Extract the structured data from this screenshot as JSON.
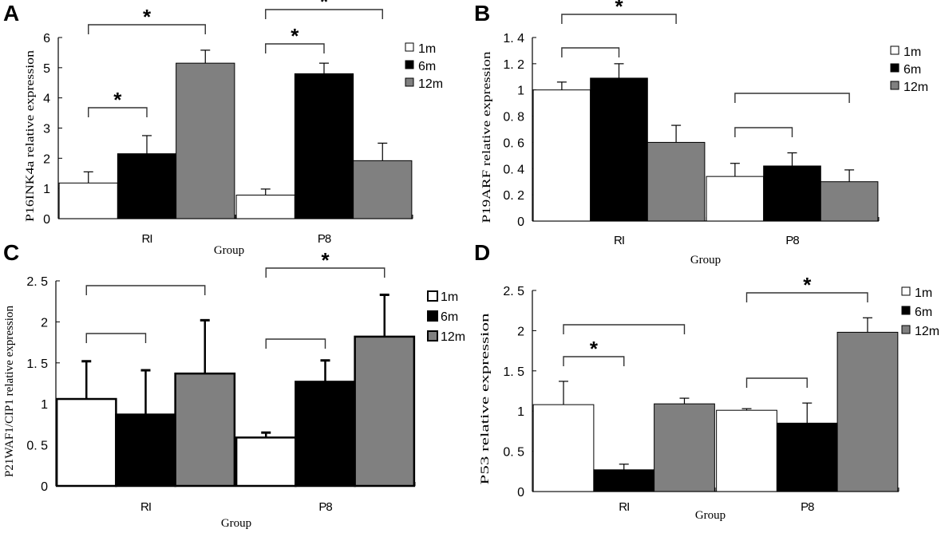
{
  "figure": {
    "legend": [
      {
        "label": "1m",
        "color": "#ffffff"
      },
      {
        "label": "6m",
        "color": "#000000"
      },
      {
        "label": "12m",
        "color": "#808080"
      }
    ]
  },
  "chart_data": [
    {
      "panel": "A",
      "type": "bar",
      "title": "",
      "xlabel": "Group",
      "ylabel": "P16INK4a relative expression",
      "categories": [
        "RI",
        "P8"
      ],
      "ylim": [
        0,
        6
      ],
      "yticks": [
        "0",
        "1",
        "2",
        "3",
        "4",
        "5",
        "6"
      ],
      "ytick_values": [
        0,
        1,
        2,
        3,
        4,
        5,
        6
      ],
      "legend_position": "right",
      "series": [
        {
          "name": "1m",
          "color": "#ffffff",
          "values": [
            1.18,
            0.78
          ],
          "errors": [
            0.37,
            0.2
          ]
        },
        {
          "name": "6m",
          "color": "#000000",
          "values": [
            2.15,
            4.8
          ],
          "errors": [
            0.6,
            0.35
          ]
        },
        {
          "name": "12m",
          "color": "#808080",
          "values": [
            5.15,
            1.92
          ],
          "errors": [
            0.43,
            0.58
          ]
        }
      ],
      "significance": [
        {
          "category": "RI",
          "from": "1m",
          "to": "12m",
          "level": 2,
          "star": "*"
        },
        {
          "category": "RI",
          "from": "1m",
          "to": "6m",
          "level": 1,
          "star": "*"
        },
        {
          "category": "P8",
          "from": "1m",
          "to": "12m",
          "level": 2,
          "star": "*"
        },
        {
          "category": "P8",
          "from": "1m",
          "to": "6m",
          "level": 1,
          "star": "*"
        }
      ]
    },
    {
      "panel": "B",
      "type": "bar",
      "title": "",
      "xlabel": "Group",
      "ylabel": "P19ARF relative expression",
      "categories": [
        "RI",
        "P8"
      ],
      "ylim": [
        0,
        1.4
      ],
      "yticks": [
        "0",
        "0. 2",
        "0. 4",
        "0. 6",
        "0. 8",
        "1",
        "1. 2",
        "1. 4"
      ],
      "ytick_values": [
        0,
        0.2,
        0.4,
        0.6,
        0.8,
        1.0,
        1.2,
        1.4
      ],
      "legend_position": "right",
      "series": [
        {
          "name": "1m",
          "color": "#ffffff",
          "values": [
            1.0,
            0.34
          ],
          "errors": [
            0.06,
            0.1
          ]
        },
        {
          "name": "6m",
          "color": "#000000",
          "values": [
            1.09,
            0.42
          ],
          "errors": [
            0.11,
            0.1
          ]
        },
        {
          "name": "12m",
          "color": "#808080",
          "values": [
            0.6,
            0.3
          ],
          "errors": [
            0.13,
            0.09
          ]
        }
      ],
      "significance": [
        {
          "category": "RI",
          "from": "1m",
          "to": "12m",
          "level": 2,
          "star": "*"
        },
        {
          "category": "RI",
          "from": "1m",
          "to": "6m",
          "level": 1,
          "star": ""
        },
        {
          "category": "P8",
          "from": "1m",
          "to": "12m",
          "level": 2,
          "star": ""
        },
        {
          "category": "P8",
          "from": "1m",
          "to": "6m",
          "level": 1,
          "star": ""
        }
      ]
    },
    {
      "panel": "C",
      "type": "bar",
      "title": "",
      "xlabel": "Group",
      "ylabel": "P21WAF1/CIP1 relative expression",
      "categories": [
        "RI",
        "P8"
      ],
      "ylim": [
        0,
        2.5
      ],
      "yticks": [
        "0",
        "0. 5",
        "1",
        "1. 5",
        "2",
        "2. 5"
      ],
      "ytick_values": [
        0,
        0.5,
        1.0,
        1.5,
        2.0,
        2.5
      ],
      "legend_position": "right",
      "series": [
        {
          "name": "1m",
          "color": "#ffffff",
          "values": [
            1.06,
            0.59
          ],
          "errors": [
            0.46,
            0.06
          ]
        },
        {
          "name": "6m",
          "color": "#000000",
          "values": [
            0.87,
            1.27
          ],
          "errors": [
            0.54,
            0.26
          ]
        },
        {
          "name": "12m",
          "color": "#808080",
          "values": [
            1.37,
            1.82
          ],
          "errors": [
            0.65,
            0.51
          ]
        }
      ],
      "significance": [
        {
          "category": "RI",
          "from": "1m",
          "to": "12m",
          "level": 2,
          "star": ""
        },
        {
          "category": "RI",
          "from": "1m",
          "to": "6m",
          "level": 1,
          "star": ""
        },
        {
          "category": "P8",
          "from": "1m",
          "to": "12m",
          "level": 2,
          "star": "*"
        },
        {
          "category": "P8",
          "from": "1m",
          "to": "6m",
          "level": 1,
          "star": ""
        }
      ]
    },
    {
      "panel": "D",
      "type": "bar",
      "title": "",
      "xlabel": "Group",
      "ylabel": "P53 relative expression",
      "categories": [
        "RI",
        "P8"
      ],
      "ylim": [
        0,
        2.5
      ],
      "yticks": [
        "0",
        "0. 5",
        "1",
        "1. 5",
        "2",
        "2. 5"
      ],
      "ytick_values": [
        0,
        0.5,
        1.0,
        1.5,
        2.0,
        2.5
      ],
      "legend_position": "right",
      "series": [
        {
          "name": "1m",
          "color": "#ffffff",
          "values": [
            1.08,
            1.01
          ],
          "errors": [
            0.29,
            0.02
          ]
        },
        {
          "name": "6m",
          "color": "#000000",
          "values": [
            0.27,
            0.85
          ],
          "errors": [
            0.07,
            0.25
          ]
        },
        {
          "name": "12m",
          "color": "#808080",
          "values": [
            1.09,
            1.98
          ],
          "errors": [
            0.07,
            0.18
          ]
        }
      ],
      "significance": [
        {
          "category": "RI",
          "from": "1m",
          "to": "12m",
          "level": 2,
          "star": ""
        },
        {
          "category": "RI",
          "from": "1m",
          "to": "6m",
          "level": 1,
          "star": "*"
        },
        {
          "category": "P8",
          "from": "1m",
          "to": "12m",
          "level": 2,
          "star": "*"
        },
        {
          "category": "P8",
          "from": "1m",
          "to": "6m",
          "level": 1,
          "star": ""
        }
      ]
    }
  ]
}
